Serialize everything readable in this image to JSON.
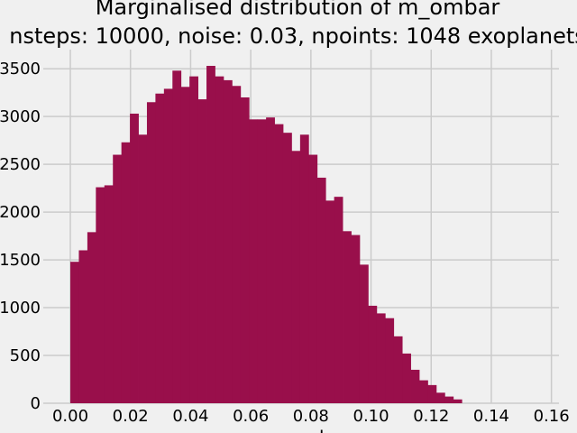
{
  "chart_data": {
    "type": "bar",
    "title": "Marginalised distribution of m_ombar",
    "subtitle": "nsteps: 10000, noise: 0.03, npoints: 1048 exoplanets",
    "xlabel": "m_ombar",
    "ylabel": "",
    "xlim": [
      -0.009,
      0.1625
    ],
    "ylim": [
      0,
      3700
    ],
    "xticks": [
      0.0,
      0.02,
      0.04,
      0.06,
      0.08,
      0.1,
      0.12,
      0.14,
      0.16
    ],
    "xtick_labels": [
      "0.00",
      "0.02",
      "0.04",
      "0.06",
      "0.08",
      "0.10",
      "0.12",
      "0.14",
      "0.16"
    ],
    "yticks": [
      0,
      500,
      1000,
      1500,
      2000,
      2500,
      3000,
      3500
    ],
    "ytick_labels": [
      "0",
      "500",
      "1000",
      "1500",
      "2000",
      "2500",
      "3000",
      "3500"
    ],
    "grid": true,
    "bar_color": "#990f4b",
    "bin_width": 0.00283,
    "bin_start": 0.0,
    "values": [
      1480,
      1600,
      1790,
      2260,
      2280,
      2600,
      2730,
      3030,
      2810,
      3150,
      3240,
      3290,
      3480,
      3310,
      3420,
      3180,
      3530,
      3420,
      3380,
      3320,
      3200,
      2970,
      2970,
      2990,
      2920,
      2830,
      2640,
      2810,
      2600,
      2360,
      2120,
      2160,
      1800,
      1760,
      1450,
      1020,
      940,
      890,
      700,
      520,
      350,
      240,
      190,
      110,
      70,
      40
    ]
  }
}
